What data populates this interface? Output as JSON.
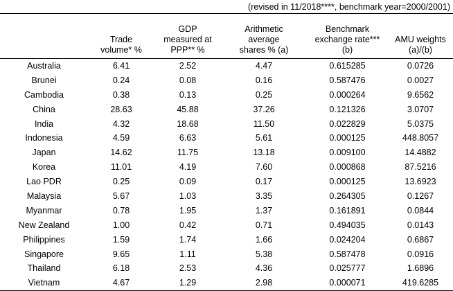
{
  "note": "(revised in 11/2018****, benchmark year=2000/2001)",
  "headers": [
    "",
    "Trade\nvolume*   %",
    "GDP\nmeasured at\nPPP**  %",
    "Arithmetic\naverage\nshares %   (a)",
    "Benchmark\nexchange rate***\n(b)",
    "AMU weights\n(a)/(b)"
  ],
  "rows": [
    [
      "Australia",
      "6.41",
      "2.52",
      "4.47",
      "0.615285",
      "0.0726"
    ],
    [
      "Brunei",
      "0.24",
      "0.08",
      "0.16",
      "0.587476",
      "0.0027"
    ],
    [
      "Cambodia",
      "0.38",
      "0.13",
      "0.25",
      "0.000264",
      "9.6562"
    ],
    [
      "China",
      "28.63",
      "45.88",
      "37.26",
      "0.121326",
      "3.0707"
    ],
    [
      "India",
      "4.32",
      "18.68",
      "11.50",
      "0.022829",
      "5.0375"
    ],
    [
      "Indonesia",
      "4.59",
      "6.63",
      "5.61",
      "0.000125",
      "448.8057"
    ],
    [
      "Japan",
      "14.62",
      "11.75",
      "13.18",
      "0.009100",
      "14.4882"
    ],
    [
      "Korea",
      "11.01",
      "4.19",
      "7.60",
      "0.000868",
      "87.5216"
    ],
    [
      "Lao PDR",
      "0.25",
      "0.09",
      "0.17",
      "0.000125",
      "13.6923"
    ],
    [
      "Malaysia",
      "5.67",
      "1.03",
      "3.35",
      "0.264305",
      "0.1267"
    ],
    [
      "Myanmar",
      "0.78",
      "1.95",
      "1.37",
      "0.161891",
      "0.0844"
    ],
    [
      "New Zealand",
      "1.00",
      "0.42",
      "0.71",
      "0.494035",
      "0.0143"
    ],
    [
      "Philippines",
      "1.59",
      "1.74",
      "1.66",
      "0.024204",
      "0.6867"
    ],
    [
      "Singapore",
      "9.65",
      "1.11",
      "5.38",
      "0.587478",
      "0.0916"
    ],
    [
      "Thailand",
      "6.18",
      "2.53",
      "4.36",
      "0.025777",
      "1.6896"
    ],
    [
      "Vietnam",
      "4.67",
      "1.29",
      "2.98",
      "0.000071",
      "419.6285"
    ]
  ]
}
